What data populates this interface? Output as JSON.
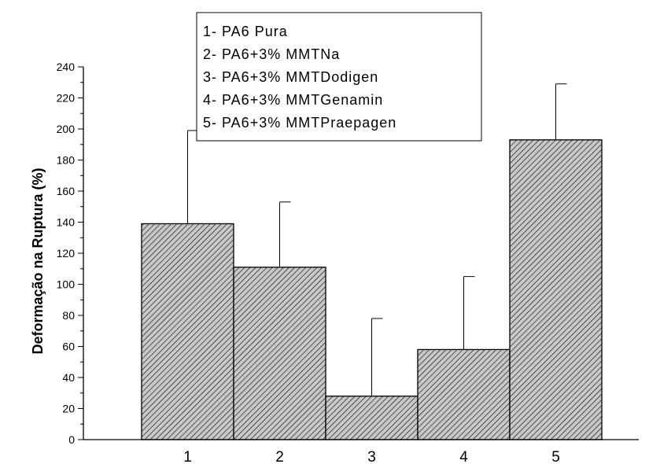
{
  "chart_data": {
    "type": "bar",
    "categories": [
      "1",
      "2",
      "3",
      "4",
      "5"
    ],
    "values": [
      139,
      111,
      28,
      58,
      193
    ],
    "error_plus": [
      60,
      42,
      50,
      47,
      36
    ],
    "ylabel": "Deformação na Ruptura (%)",
    "xlabel": "",
    "ylim": [
      0,
      240
    ],
    "yticks": [
      0,
      20,
      40,
      60,
      80,
      100,
      120,
      140,
      160,
      180,
      200,
      220,
      240
    ],
    "grid": false,
    "legend_position": "top-center",
    "legend": [
      "1- PA6 Pura",
      "2- PA6+3% MMTNa",
      "3- PA6+3% MMTDodigen",
      "4- PA6+3% MMTGenamin",
      "5- PA6+3% MMTPraepagen"
    ],
    "colors": {
      "bar_fill": "#c8c8c8",
      "hatch": "#000000",
      "axis": "#000000"
    }
  }
}
